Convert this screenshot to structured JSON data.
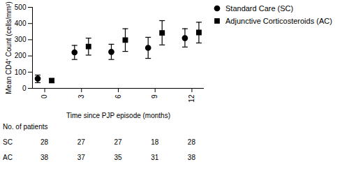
{
  "chart_data": {
    "type": "scatter",
    "x_label": "Time since PJP episode (months)",
    "y_label": "Mean CD4⁺ Count (cells/mm³)",
    "x": [
      0,
      3,
      6,
      9,
      12
    ],
    "xlim": [
      -1,
      13
    ],
    "xticks": [
      0,
      3,
      6,
      9,
      12
    ],
    "ylim": [
      0,
      500
    ],
    "yticks": [
      0,
      100,
      200,
      300,
      400,
      500
    ],
    "grid": false,
    "legend": "upper right",
    "series": [
      {
        "name": "Standard Care (SC)",
        "color": "#000000",
        "marker": "circle",
        "values": [
          60,
          222,
          225,
          250,
          310
        ],
        "error_low": [
          35,
          178,
          178,
          185,
          255
        ],
        "error_high": [
          82,
          265,
          272,
          315,
          368
        ]
      },
      {
        "name": "Adjunctive Corticosteroids (AC)",
        "color": "#000000",
        "marker": "square",
        "values": [
          48,
          258,
          298,
          342,
          345
        ],
        "error_low": [
          35,
          205,
          228,
          268,
          280
        ],
        "error_high": [
          60,
          310,
          368,
          418,
          408
        ]
      }
    ],
    "patients_table": {
      "title": "No. of patients",
      "rows": [
        {
          "name": "SC",
          "values": [
            28,
            27,
            27,
            18,
            28
          ]
        },
        {
          "name": "AC",
          "values": [
            38,
            37,
            35,
            31,
            38
          ]
        }
      ]
    }
  }
}
